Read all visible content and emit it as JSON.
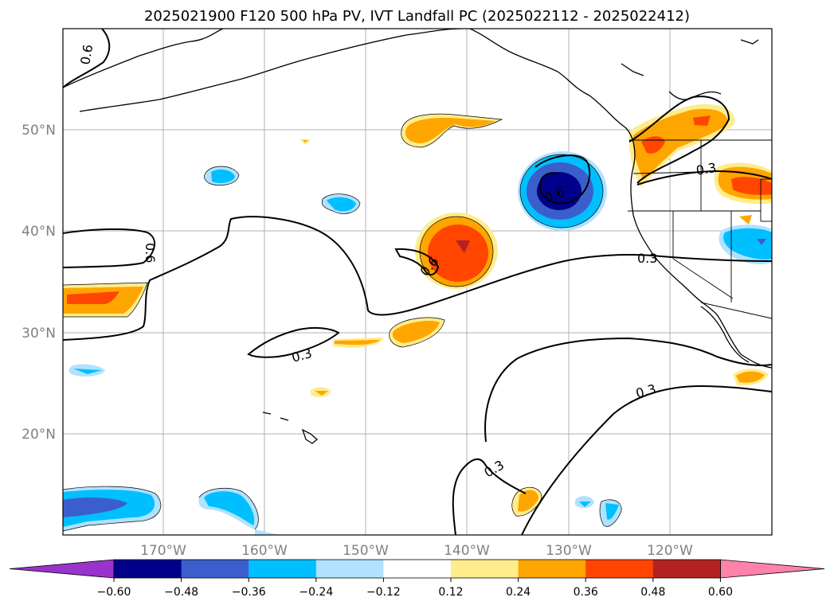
{
  "title": "2025021900 F120 500 hPa PV, IVT Landfall PC (2025022112 - 2025022412)",
  "lat_labels": [
    "50°N",
    "40°N",
    "30°N",
    "20°N"
  ],
  "lon_labels": [
    "170°W",
    "160°W",
    "150°W",
    "140°W",
    "130°W",
    "120°W"
  ],
  "contour_labels": [
    "0.6",
    "0.6",
    "0.6",
    "0.6",
    "0.3",
    "0.3",
    "0.3",
    "0.3",
    "0.3"
  ],
  "colorbar": {
    "ticks": [
      "−0.60",
      "−0.48",
      "−0.36",
      "−0.24",
      "−0.12",
      "0.12",
      "0.24",
      "0.36",
      "0.48",
      "0.60"
    ],
    "colors": [
      "#9933cc",
      "#00008b",
      "#3a5fcd",
      "#00bfff",
      "#b0e2ff",
      "#ffffff",
      "#ffec8b",
      "#ffa500",
      "#ff4500",
      "#b22222",
      "#ff82ab"
    ]
  },
  "colors": {
    "grid": "#b0b0b0",
    "contour": "#000000",
    "label": "#808080"
  }
}
